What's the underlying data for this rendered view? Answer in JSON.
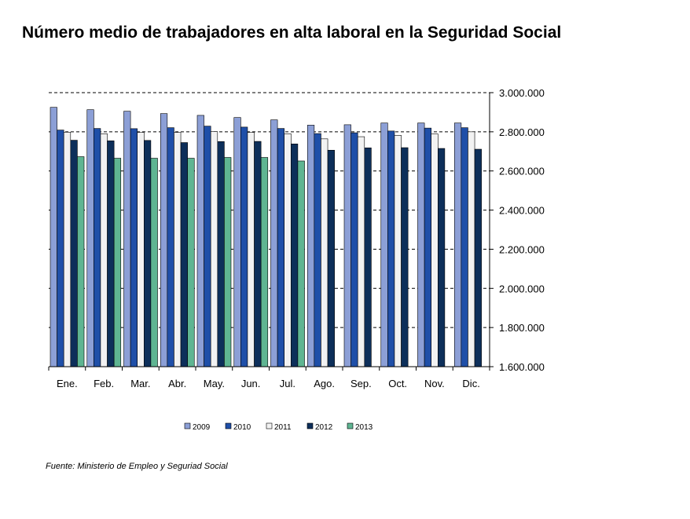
{
  "title": "Número medio de trabajadores en alta laboral en la Seguridad Social",
  "source": "Fuente: Ministerio de Empleo y Seguriad Social",
  "chart_data": {
    "type": "bar",
    "title": "Número medio de trabajadores en alta laboral en la Seguridad Social",
    "categories": [
      "Ene.",
      "Feb.",
      "Mar.",
      "Abr.",
      "May.",
      "Jun.",
      "Jul.",
      "Ago.",
      "Sep.",
      "Oct.",
      "Nov.",
      "Dic."
    ],
    "ylim": [
      1600000,
      3000000
    ],
    "yticks": [
      1600000,
      1800000,
      2000000,
      2200000,
      2400000,
      2600000,
      2800000,
      3000000
    ],
    "ytick_labels": [
      "1.600.000",
      "1.800.000",
      "2.000.000",
      "2.200.000",
      "2.400.000",
      "2.600.000",
      "2.800.000",
      "3.000.000"
    ],
    "grid": "horizontal dashed",
    "y_axis_side": "right",
    "legend_position": "bottom",
    "series": [
      {
        "name": "2009",
        "color": "#8c9fd6",
        "values": [
          2925000,
          2913000,
          2905000,
          2893000,
          2884000,
          2873000,
          2861000,
          2834000,
          2836000,
          2845000,
          2845000,
          2845000
        ]
      },
      {
        "name": "2010",
        "color": "#1f4fa8",
        "values": [
          2809000,
          2817000,
          2816000,
          2821000,
          2829000,
          2824000,
          2817000,
          2791000,
          2795000,
          2804000,
          2819000,
          2821000
        ]
      },
      {
        "name": "2011",
        "color": "#f2f2f2",
        "values": [
          2798000,
          2790000,
          2797000,
          2797000,
          2801000,
          2797000,
          2790000,
          2764000,
          2775000,
          2782000,
          2789000,
          2800000
        ]
      },
      {
        "name": "2012",
        "color": "#0d2f5a",
        "values": [
          2757000,
          2754000,
          2756000,
          2745000,
          2750000,
          2751000,
          2738000,
          2706000,
          2718000,
          2719000,
          2715000,
          2711000
        ]
      },
      {
        "name": "2013",
        "color": "#5fb592",
        "values": [
          2673000,
          2665000,
          2665000,
          2665000,
          2669000,
          2669000,
          2651000,
          null,
          null,
          null,
          null,
          null
        ]
      }
    ]
  }
}
